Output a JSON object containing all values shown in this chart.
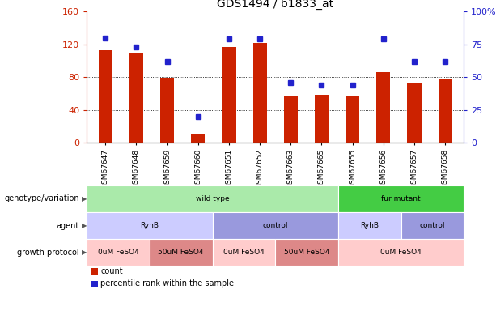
{
  "title": "GDS1494 / b1833_at",
  "samples": [
    "GSM67647",
    "GSM67648",
    "GSM67659",
    "GSM67660",
    "GSM67651",
    "GSM67652",
    "GSM67663",
    "GSM67665",
    "GSM67655",
    "GSM67656",
    "GSM67657",
    "GSM67658"
  ],
  "counts": [
    113,
    109,
    79,
    10,
    117,
    122,
    56,
    58,
    57,
    86,
    73,
    78
  ],
  "percentile_ranks": [
    80,
    73,
    62,
    20,
    79,
    79,
    46,
    44,
    44,
    79,
    62,
    62
  ],
  "ylim_left": [
    0,
    160
  ],
  "ylim_right": [
    0,
    100
  ],
  "yticks_left": [
    0,
    40,
    80,
    120,
    160
  ],
  "yticks_right": [
    0,
    25,
    50,
    75,
    100
  ],
  "bar_color": "#cc2200",
  "dot_color": "#2222cc",
  "bg_color": "#ffffff",
  "genotype_row": {
    "label": "genotype/variation",
    "segments": [
      {
        "text": "wild type",
        "start": 0,
        "end": 8,
        "color": "#aaeaaa"
      },
      {
        "text": "fur mutant",
        "start": 8,
        "end": 12,
        "color": "#44cc44"
      }
    ]
  },
  "agent_row": {
    "label": "agent",
    "segments": [
      {
        "text": "RyhB",
        "start": 0,
        "end": 4,
        "color": "#ccccff"
      },
      {
        "text": "control",
        "start": 4,
        "end": 8,
        "color": "#9999dd"
      },
      {
        "text": "RyhB",
        "start": 8,
        "end": 10,
        "color": "#ccccff"
      },
      {
        "text": "control",
        "start": 10,
        "end": 12,
        "color": "#9999dd"
      }
    ]
  },
  "growth_row": {
    "label": "growth protocol",
    "segments": [
      {
        "text": "0uM FeSO4",
        "start": 0,
        "end": 2,
        "color": "#ffcccc"
      },
      {
        "text": "50uM FeSO4",
        "start": 2,
        "end": 4,
        "color": "#dd8888"
      },
      {
        "text": "0uM FeSO4",
        "start": 4,
        "end": 6,
        "color": "#ffcccc"
      },
      {
        "text": "50uM FeSO4",
        "start": 6,
        "end": 8,
        "color": "#dd8888"
      },
      {
        "text": "0uM FeSO4",
        "start": 8,
        "end": 12,
        "color": "#ffcccc"
      }
    ]
  },
  "legend_items": [
    {
      "color": "#cc2200",
      "label": "count"
    },
    {
      "color": "#2222cc",
      "label": "percentile rank within the sample"
    }
  ]
}
